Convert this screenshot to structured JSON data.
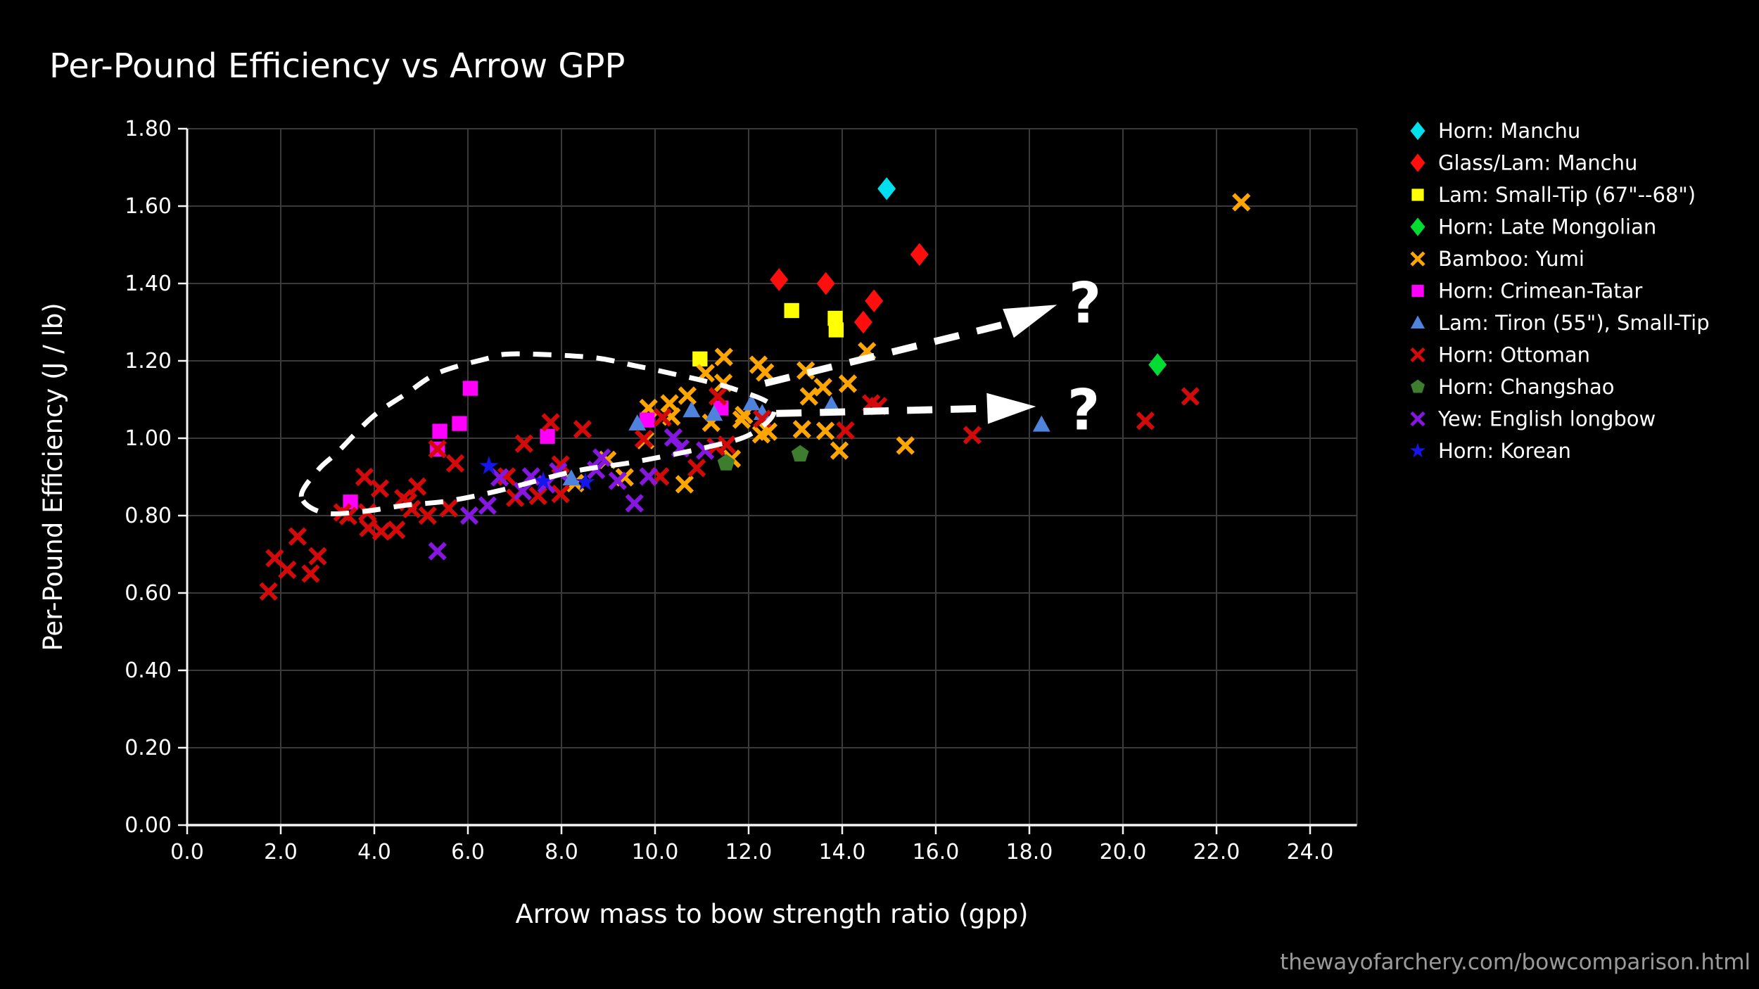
{
  "title": "Per-Pound Efficiency vs Arrow GPP",
  "source": "thewayofarchery.com/bowcomparison.html",
  "chart_data": {
    "type": "scatter",
    "title": "Per-Pound Efficiency vs Arrow GPP",
    "xlabel": "Arrow mass to bow strength ratio (gpp)",
    "ylabel": "Per-Pound Efficiency (J / lb)",
    "xlim": [
      0,
      25
    ],
    "ylim": [
      0,
      1.8
    ],
    "grid": true,
    "legend_position": "right-outside",
    "background_color": "#000000",
    "grid_color": "#3a3a3a",
    "axis_color": "#f5f5f5",
    "text_color": "#ffffff",
    "source_color": "#9a9a9a",
    "annotation_color": "#ffffff",
    "xticks": {
      "values": [
        0,
        2,
        4,
        6,
        8,
        10,
        12,
        14,
        16,
        18,
        20,
        22,
        24
      ],
      "labels": [
        "0.0",
        "2.0",
        "4.0",
        "6.0",
        "8.0",
        "10.0",
        "12.0",
        "14.0",
        "16.0",
        "18.0",
        "20.0",
        "22.0",
        "24.0"
      ]
    },
    "yticks": {
      "values": [
        0,
        0.2,
        0.4,
        0.6,
        0.8,
        1.0,
        1.2,
        1.4,
        1.6,
        1.8
      ],
      "labels": [
        "0.00",
        "0.20",
        "0.40",
        "0.60",
        "0.80",
        "1.00",
        "1.20",
        "1.40",
        "1.60",
        "1.80"
      ]
    },
    "series": [
      {
        "name": "Horn: Manchu",
        "marker": "diamond",
        "color": "#00dfee",
        "points": [
          [
            14.95,
            1.645
          ]
        ]
      },
      {
        "name": "Glass/Lam: Manchu",
        "marker": "diamond",
        "color": "#ff0e0e",
        "points": [
          [
            12.65,
            1.41
          ],
          [
            13.65,
            1.4
          ],
          [
            14.68,
            1.355
          ],
          [
            14.45,
            1.3
          ],
          [
            15.65,
            1.475
          ]
        ]
      },
      {
        "name": "Lam: Small-Tip (67\"--68\")",
        "marker": "square",
        "color": "#ffff00",
        "points": [
          [
            12.92,
            1.33
          ],
          [
            13.85,
            1.31
          ],
          [
            13.87,
            1.28
          ],
          [
            10.96,
            1.205
          ]
        ]
      },
      {
        "name": "Horn: Late Mongolian",
        "marker": "diamond",
        "color": "#00dc32",
        "points": [
          [
            20.74,
            1.19
          ]
        ]
      },
      {
        "name": "Bamboo: Yumi",
        "marker": "x",
        "color": "#ffa500",
        "points": [
          [
            22.53,
            1.61
          ],
          [
            14.53,
            1.225
          ],
          [
            11.47,
            1.21
          ],
          [
            12.21,
            1.19
          ],
          [
            13.22,
            1.175
          ],
          [
            12.35,
            1.17
          ],
          [
            11.08,
            1.168
          ],
          [
            11.46,
            1.143
          ],
          [
            14.12,
            1.141
          ],
          [
            13.59,
            1.132
          ],
          [
            10.69,
            1.11
          ],
          [
            13.29,
            1.108
          ],
          [
            10.31,
            1.09
          ],
          [
            9.86,
            1.078
          ],
          [
            11.9,
            1.06
          ],
          [
            10.35,
            1.056
          ],
          [
            11.85,
            1.048
          ],
          [
            11.2,
            1.04
          ],
          [
            13.14,
            1.023
          ],
          [
            12.42,
            1.017
          ],
          [
            13.64,
            1.019
          ],
          [
            12.27,
            1.01
          ],
          [
            9.79,
            0.995
          ],
          [
            15.35,
            0.981
          ],
          [
            13.94,
            0.968
          ],
          [
            11.64,
            0.947
          ],
          [
            8.98,
            0.944
          ],
          [
            9.35,
            0.899
          ],
          [
            8.29,
            0.884
          ],
          [
            10.63,
            0.881
          ]
        ]
      },
      {
        "name": "Horn: Crimean-Tatar",
        "marker": "square",
        "color": "#ff00ff",
        "points": [
          [
            6.05,
            1.129
          ],
          [
            5.82,
            1.038
          ],
          [
            5.4,
            1.018
          ],
          [
            5.35,
            0.972
          ],
          [
            7.7,
            1.005
          ],
          [
            9.83,
            1.047
          ],
          [
            11.41,
            1.078
          ],
          [
            3.49,
            0.835
          ]
        ]
      },
      {
        "name": "Lam: Tiron (55\"), Small-Tip",
        "marker": "triangle",
        "color": "#4f82dd",
        "points": [
          [
            9.62,
            1.038
          ],
          [
            10.78,
            1.072
          ],
          [
            11.26,
            1.063
          ],
          [
            12.06,
            1.09
          ],
          [
            12.29,
            1.065
          ],
          [
            13.77,
            1.086
          ],
          [
            18.26,
            1.035
          ],
          [
            8.21,
            0.896
          ]
        ]
      },
      {
        "name": "Horn: Ottoman",
        "marker": "x",
        "color": "#d40a0a",
        "points": [
          [
            11.34,
            1.108
          ],
          [
            21.44,
            1.108
          ],
          [
            14.62,
            1.09
          ],
          [
            14.77,
            1.083
          ],
          [
            10.16,
            1.054
          ],
          [
            12.29,
            1.05
          ],
          [
            20.48,
            1.045
          ],
          [
            7.77,
            1.041
          ],
          [
            8.45,
            1.023
          ],
          [
            14.07,
            1.02
          ],
          [
            16.78,
            1.008
          ],
          [
            9.76,
            0.998
          ],
          [
            7.2,
            0.986
          ],
          [
            11.53,
            0.983
          ],
          [
            11.3,
            0.978
          ],
          [
            5.35,
            0.972
          ],
          [
            5.73,
            0.935
          ],
          [
            7.98,
            0.932
          ],
          [
            10.89,
            0.923
          ],
          [
            10.11,
            0.901
          ],
          [
            6.83,
            0.901
          ],
          [
            3.79,
            0.9
          ],
          [
            4.92,
            0.875
          ],
          [
            4.12,
            0.87
          ],
          [
            7.98,
            0.856
          ],
          [
            7.5,
            0.851
          ],
          [
            7.01,
            0.846
          ],
          [
            4.62,
            0.845
          ],
          [
            4.72,
            0.835
          ],
          [
            5.59,
            0.819
          ],
          [
            4.8,
            0.817
          ],
          [
            3.32,
            0.808
          ],
          [
            3.85,
            0.808
          ],
          [
            5.14,
            0.8
          ],
          [
            3.44,
            0.799
          ],
          [
            3.87,
            0.768
          ],
          [
            4.47,
            0.763
          ],
          [
            4.15,
            0.759
          ],
          [
            2.36,
            0.746
          ],
          [
            2.79,
            0.695
          ],
          [
            1.87,
            0.69
          ],
          [
            2.14,
            0.66
          ],
          [
            2.64,
            0.65
          ],
          [
            1.74,
            0.604
          ]
        ]
      },
      {
        "name": "Horn: Changshao",
        "marker": "pentagon",
        "color": "#3d7d2e",
        "points": [
          [
            11.52,
            0.936
          ],
          [
            13.1,
            0.959
          ]
        ]
      },
      {
        "name": "Yew: English longbow",
        "marker": "x",
        "color": "#8517e0",
        "points": [
          [
            10.39,
            1.002
          ],
          [
            11.07,
            0.968
          ],
          [
            10.54,
            0.974
          ],
          [
            8.86,
            0.95
          ],
          [
            8.74,
            0.918
          ],
          [
            7.93,
            0.914
          ],
          [
            9.86,
            0.901
          ],
          [
            7.35,
            0.901
          ],
          [
            6.68,
            0.899
          ],
          [
            9.2,
            0.89
          ],
          [
            7.68,
            0.881
          ],
          [
            7.17,
            0.863
          ],
          [
            9.56,
            0.832
          ],
          [
            6.42,
            0.826
          ],
          [
            6.03,
            0.8
          ],
          [
            5.35,
            0.708
          ]
        ]
      },
      {
        "name": "Horn: Korean",
        "marker": "star",
        "color": "#1515ee",
        "points": [
          [
            6.45,
            0.928
          ],
          [
            7.61,
            0.889
          ],
          [
            8.51,
            0.886
          ]
        ]
      }
    ],
    "annotations": {
      "loop": {
        "style": "dashed",
        "color": "#ffffff",
        "points": [
          [
            2.44,
            0.849
          ],
          [
            2.8,
            0.918
          ],
          [
            3.22,
            0.965
          ],
          [
            3.97,
            1.056
          ],
          [
            4.68,
            1.115
          ],
          [
            5.37,
            1.169
          ],
          [
            6.38,
            1.205
          ],
          [
            6.98,
            1.218
          ],
          [
            8.63,
            1.209
          ],
          [
            9.58,
            1.187
          ],
          [
            10.14,
            1.173
          ],
          [
            11.64,
            1.129
          ],
          [
            12.54,
            1.078
          ],
          [
            12.05,
            1.011
          ],
          [
            11.04,
            0.975
          ],
          [
            9.53,
            0.938
          ],
          [
            8.29,
            0.915
          ],
          [
            6.68,
            0.865
          ],
          [
            5.59,
            0.838
          ],
          [
            4.68,
            0.827
          ],
          [
            3.77,
            0.811
          ],
          [
            2.92,
            0.807
          ]
        ]
      },
      "arrows": [
        {
          "from": [
            12.35,
            1.142
          ],
          "to": [
            17.55,
            1.297
          ],
          "tip": [
            18.59,
            1.345
          ],
          "label": "?",
          "label_at": [
            19.19,
            1.349
          ]
        },
        {
          "from": [
            12.59,
            1.064
          ],
          "to": [
            17.1,
            1.077
          ],
          "tip": [
            18.14,
            1.082
          ],
          "label": "?",
          "label_at": [
            19.16,
            1.073
          ]
        }
      ]
    }
  }
}
